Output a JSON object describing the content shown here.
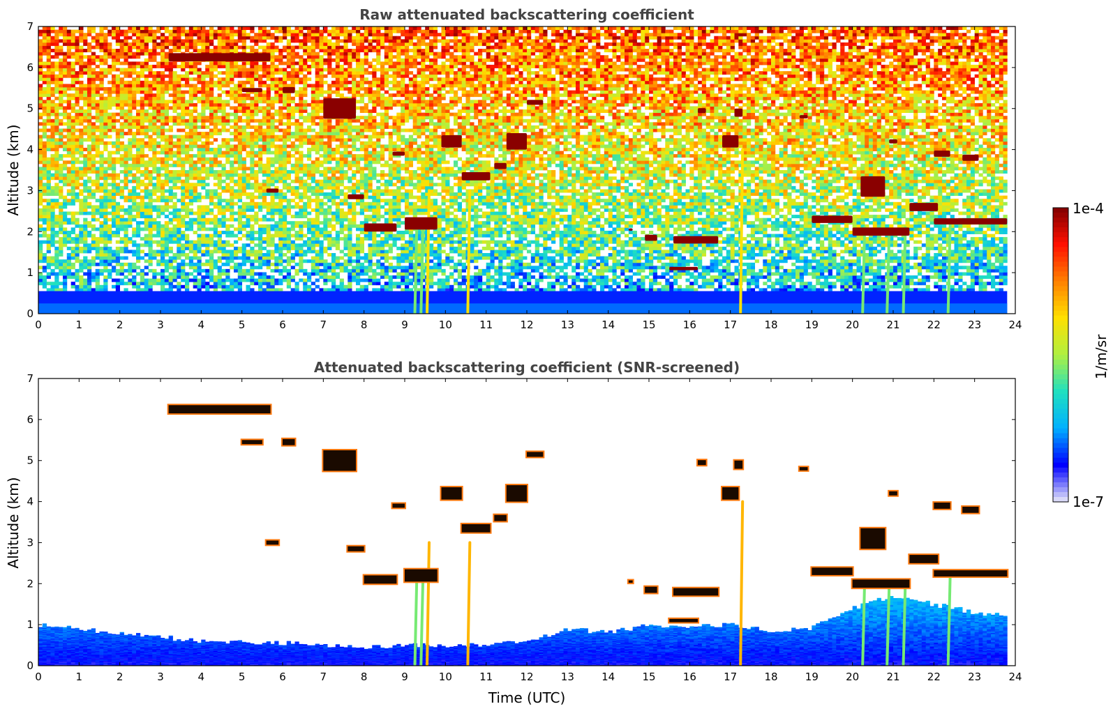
{
  "chart_data": [
    {
      "type": "heatmap",
      "title": "Raw attenuated backscattering coefficient",
      "xlabel": "",
      "ylabel": "Altitude (km)",
      "xlim": [
        0,
        24
      ],
      "ylim": [
        0,
        7
      ],
      "x_ticks": [
        "0",
        "1",
        "2",
        "3",
        "4",
        "5",
        "6",
        "7",
        "8",
        "9",
        "10",
        "11",
        "12",
        "13",
        "14",
        "15",
        "16",
        "17",
        "18",
        "19",
        "20",
        "21",
        "22",
        "23",
        "24"
      ],
      "y_ticks": [
        "0",
        "1",
        "2",
        "3",
        "4",
        "5",
        "6",
        "7"
      ],
      "data_end_time_utc": 23.8,
      "background": "noisy signal increasing with altitude",
      "cloud_layers": [
        {
          "t0": 3.2,
          "t1": 5.7,
          "alt": 6.25,
          "thick": 0.2
        },
        {
          "t0": 5.0,
          "t1": 5.5,
          "alt": 5.45,
          "thick": 0.1
        },
        {
          "t0": 6.0,
          "t1": 6.3,
          "alt": 5.45,
          "thick": 0.15
        },
        {
          "t0": 7.0,
          "t1": 7.8,
          "alt": 5.0,
          "thick": 0.5
        },
        {
          "t0": 5.6,
          "t1": 5.9,
          "alt": 3.0,
          "thick": 0.1
        },
        {
          "t0": 7.6,
          "t1": 8.0,
          "alt": 2.85,
          "thick": 0.12
        },
        {
          "t0": 8.0,
          "t1": 8.8,
          "alt": 2.1,
          "thick": 0.2
        },
        {
          "t0": 8.7,
          "t1": 9.0,
          "alt": 3.9,
          "thick": 0.1
        },
        {
          "t0": 9.0,
          "t1": 9.8,
          "alt": 2.2,
          "thick": 0.3
        },
        {
          "t0": 9.9,
          "t1": 10.4,
          "alt": 4.2,
          "thick": 0.3
        },
        {
          "t0": 10.4,
          "t1": 11.1,
          "alt": 3.35,
          "thick": 0.2
        },
        {
          "t0": 11.2,
          "t1": 11.5,
          "alt": 3.6,
          "thick": 0.15
        },
        {
          "t0": 11.5,
          "t1": 12.0,
          "alt": 4.2,
          "thick": 0.4
        },
        {
          "t0": 12.0,
          "t1": 12.4,
          "alt": 5.15,
          "thick": 0.12
        },
        {
          "t0": 14.5,
          "t1": 14.6,
          "alt": 2.05,
          "thick": 0.06
        },
        {
          "t0": 14.9,
          "t1": 15.2,
          "alt": 1.85,
          "thick": 0.15
        },
        {
          "t0": 15.6,
          "t1": 16.7,
          "alt": 1.8,
          "thick": 0.18
        },
        {
          "t0": 15.5,
          "t1": 16.2,
          "alt": 1.1,
          "thick": 0.08
        },
        {
          "t0": 16.2,
          "t1": 16.4,
          "alt": 4.95,
          "thick": 0.12
        },
        {
          "t0": 16.8,
          "t1": 17.2,
          "alt": 4.2,
          "thick": 0.3
        },
        {
          "t0": 17.1,
          "t1": 17.3,
          "alt": 4.9,
          "thick": 0.2
        },
        {
          "t0": 18.7,
          "t1": 18.9,
          "alt": 4.8,
          "thick": 0.08
        },
        {
          "t0": 19.0,
          "t1": 20.0,
          "alt": 2.3,
          "thick": 0.18
        },
        {
          "t0": 20.0,
          "t1": 21.4,
          "alt": 2.0,
          "thick": 0.2
        },
        {
          "t0": 20.2,
          "t1": 20.8,
          "alt": 3.1,
          "thick": 0.5
        },
        {
          "t0": 20.9,
          "t1": 21.1,
          "alt": 4.2,
          "thick": 0.1
        },
        {
          "t0": 21.4,
          "t1": 22.1,
          "alt": 2.6,
          "thick": 0.2
        },
        {
          "t0": 22.0,
          "t1": 23.8,
          "alt": 2.25,
          "thick": 0.15
        },
        {
          "t0": 22.0,
          "t1": 22.4,
          "alt": 3.9,
          "thick": 0.15
        },
        {
          "t0": 22.7,
          "t1": 23.1,
          "alt": 3.8,
          "thick": 0.15
        }
      ],
      "precipitation_streaks": [
        {
          "t": 9.3,
          "top": 2.3
        },
        {
          "t": 9.45,
          "top": 2.2
        },
        {
          "t": 9.6,
          "top": 3.0
        },
        {
          "t": 10.6,
          "top": 3.0
        },
        {
          "t": 17.3,
          "top": 4.0
        },
        {
          "t": 20.3,
          "top": 2.1
        },
        {
          "t": 20.9,
          "top": 1.9
        },
        {
          "t": 21.3,
          "top": 2.1
        },
        {
          "t": 22.4,
          "top": 2.2
        }
      ]
    },
    {
      "type": "heatmap",
      "title": "Attenuated backscattering coefficient (SNR-screened)",
      "xlabel": "Time (UTC)",
      "ylabel": "Altitude (km)",
      "xlim": [
        0,
        24
      ],
      "ylim": [
        0,
        7
      ],
      "x_ticks": [
        "0",
        "1",
        "2",
        "3",
        "4",
        "5",
        "6",
        "7",
        "8",
        "9",
        "10",
        "11",
        "12",
        "13",
        "14",
        "15",
        "16",
        "17",
        "18",
        "19",
        "20",
        "21",
        "22",
        "23",
        "24"
      ],
      "y_ticks": [
        "0",
        "1",
        "2",
        "3",
        "4",
        "5",
        "6",
        "7"
      ],
      "data_end_time_utc": 23.8,
      "boundary_layer_top_km": [
        {
          "t": 0,
          "alt": 1.0
        },
        {
          "t": 2,
          "alt": 0.8
        },
        {
          "t": 4,
          "alt": 0.6
        },
        {
          "t": 6,
          "alt": 0.55
        },
        {
          "t": 8,
          "alt": 0.45
        },
        {
          "t": 9,
          "alt": 0.5
        },
        {
          "t": 11,
          "alt": 0.5
        },
        {
          "t": 12,
          "alt": 0.6
        },
        {
          "t": 13,
          "alt": 0.9
        },
        {
          "t": 14,
          "alt": 0.8
        },
        {
          "t": 15,
          "alt": 1.0
        },
        {
          "t": 16,
          "alt": 0.95
        },
        {
          "t": 17,
          "alt": 1.0
        },
        {
          "t": 18,
          "alt": 0.85
        },
        {
          "t": 19,
          "alt": 0.9
        },
        {
          "t": 20,
          "alt": 1.4
        },
        {
          "t": 21,
          "alt": 1.7
        },
        {
          "t": 22,
          "alt": 1.5
        },
        {
          "t": 23,
          "alt": 1.3
        },
        {
          "t": 23.8,
          "alt": 1.2
        }
      ]
    }
  ],
  "colorbar": {
    "label": "1/m/sr",
    "max_label": "1e-4",
    "min_label": "1e-7",
    "scale": "log",
    "colormap": "jet"
  },
  "colors": {
    "frame": "#000000",
    "title": "#444444",
    "colormap_stops": [
      "#e8e8f8",
      "#0000ff",
      "#00b0ff",
      "#20e0c0",
      "#b0f040",
      "#ffe000",
      "#ff8000",
      "#ff1000",
      "#800000"
    ]
  }
}
